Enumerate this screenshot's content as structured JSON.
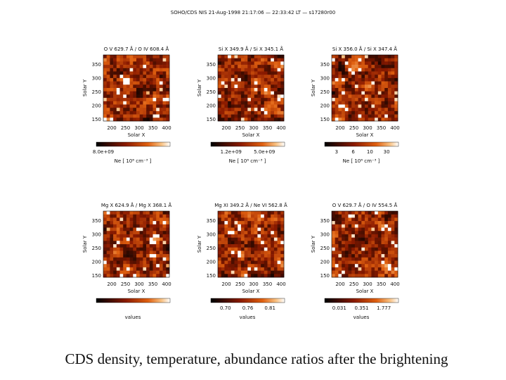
{
  "header": {
    "title": "SOHO/CDS NIS 21-Aug-1998 21:17:06 — 22:33:42 LT — s17280r00"
  },
  "axes": {
    "y_label": "Solar Y",
    "x_label": "Solar X",
    "y_ticks": [
      "350",
      "300",
      "250",
      "200",
      "150"
    ],
    "x_ticks": [
      "200",
      "250",
      "300",
      "350",
      "400"
    ]
  },
  "panels": [
    {
      "title": "O V 629.7 Å / O IV 608.4 Å",
      "colorbar_ticks": [
        "8.0e+09"
      ],
      "colorbar_label": "Ne [ 10⁸ cm⁻³ ]"
    },
    {
      "title": "Si X 349.9 Å / Si X 345.1 Å",
      "colorbar_ticks": [
        "1.2e+09",
        "5.0e+09"
      ],
      "colorbar_label": "Ne [ 10⁸ cm⁻³ ]"
    },
    {
      "title": "Si X 356.0 Å / Si X 347.4 Å",
      "colorbar_ticks": [
        "3",
        "6",
        "10",
        "30"
      ],
      "colorbar_label": "Ne [ 10⁸ cm⁻³ ]"
    },
    {
      "title": "Mg X 624.9 Å / Mg X 368.1 Å",
      "colorbar_ticks": [],
      "colorbar_label": "values"
    },
    {
      "title": "Mg XI 349.2 Å / Ne VI 562.8 Å",
      "colorbar_ticks": [
        "0.70",
        "0.76",
        "0.81"
      ],
      "colorbar_label": "values"
    },
    {
      "title": "O V 629.7 Å / O IV 554.5 Å",
      "colorbar_ticks": [
        "0.031",
        "0.351",
        "1.777"
      ],
      "colorbar_label": "values"
    }
  ],
  "caption": "CDS density, temperature, abundance ratios after the brightening"
}
